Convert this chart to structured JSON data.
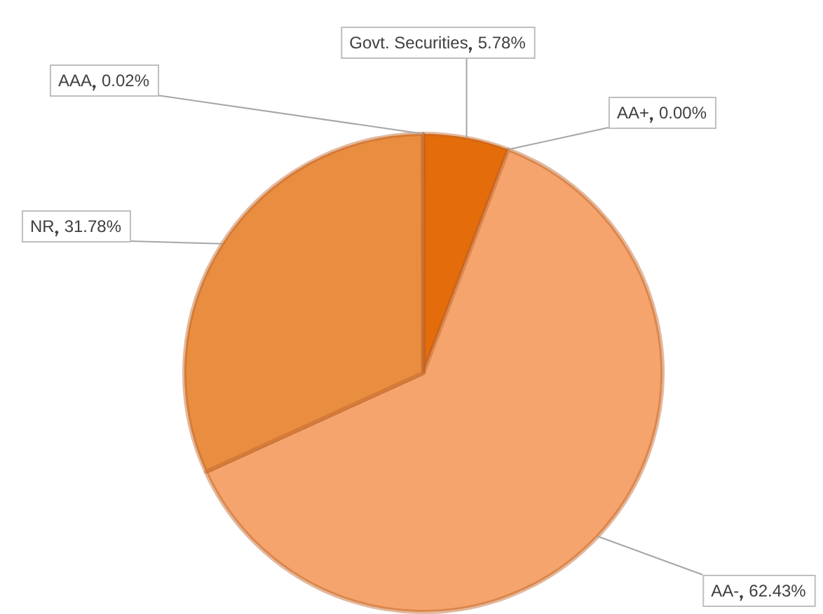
{
  "chart_data": {
    "type": "pie",
    "categories": [
      "Govt. Securities",
      "AA+",
      "AA-",
      "NR",
      "AAA"
    ],
    "values": [
      5.78,
      0.0,
      62.43,
      31.78,
      0.02
    ],
    "colors": [
      "#e46c0a",
      "#c55a11",
      "#f4a46c",
      "#e98d41",
      "#f0b080"
    ],
    "value_labels": [
      "5.78%",
      "0.00%",
      "62.43%",
      "31.78%",
      "0.02%"
    ]
  }
}
